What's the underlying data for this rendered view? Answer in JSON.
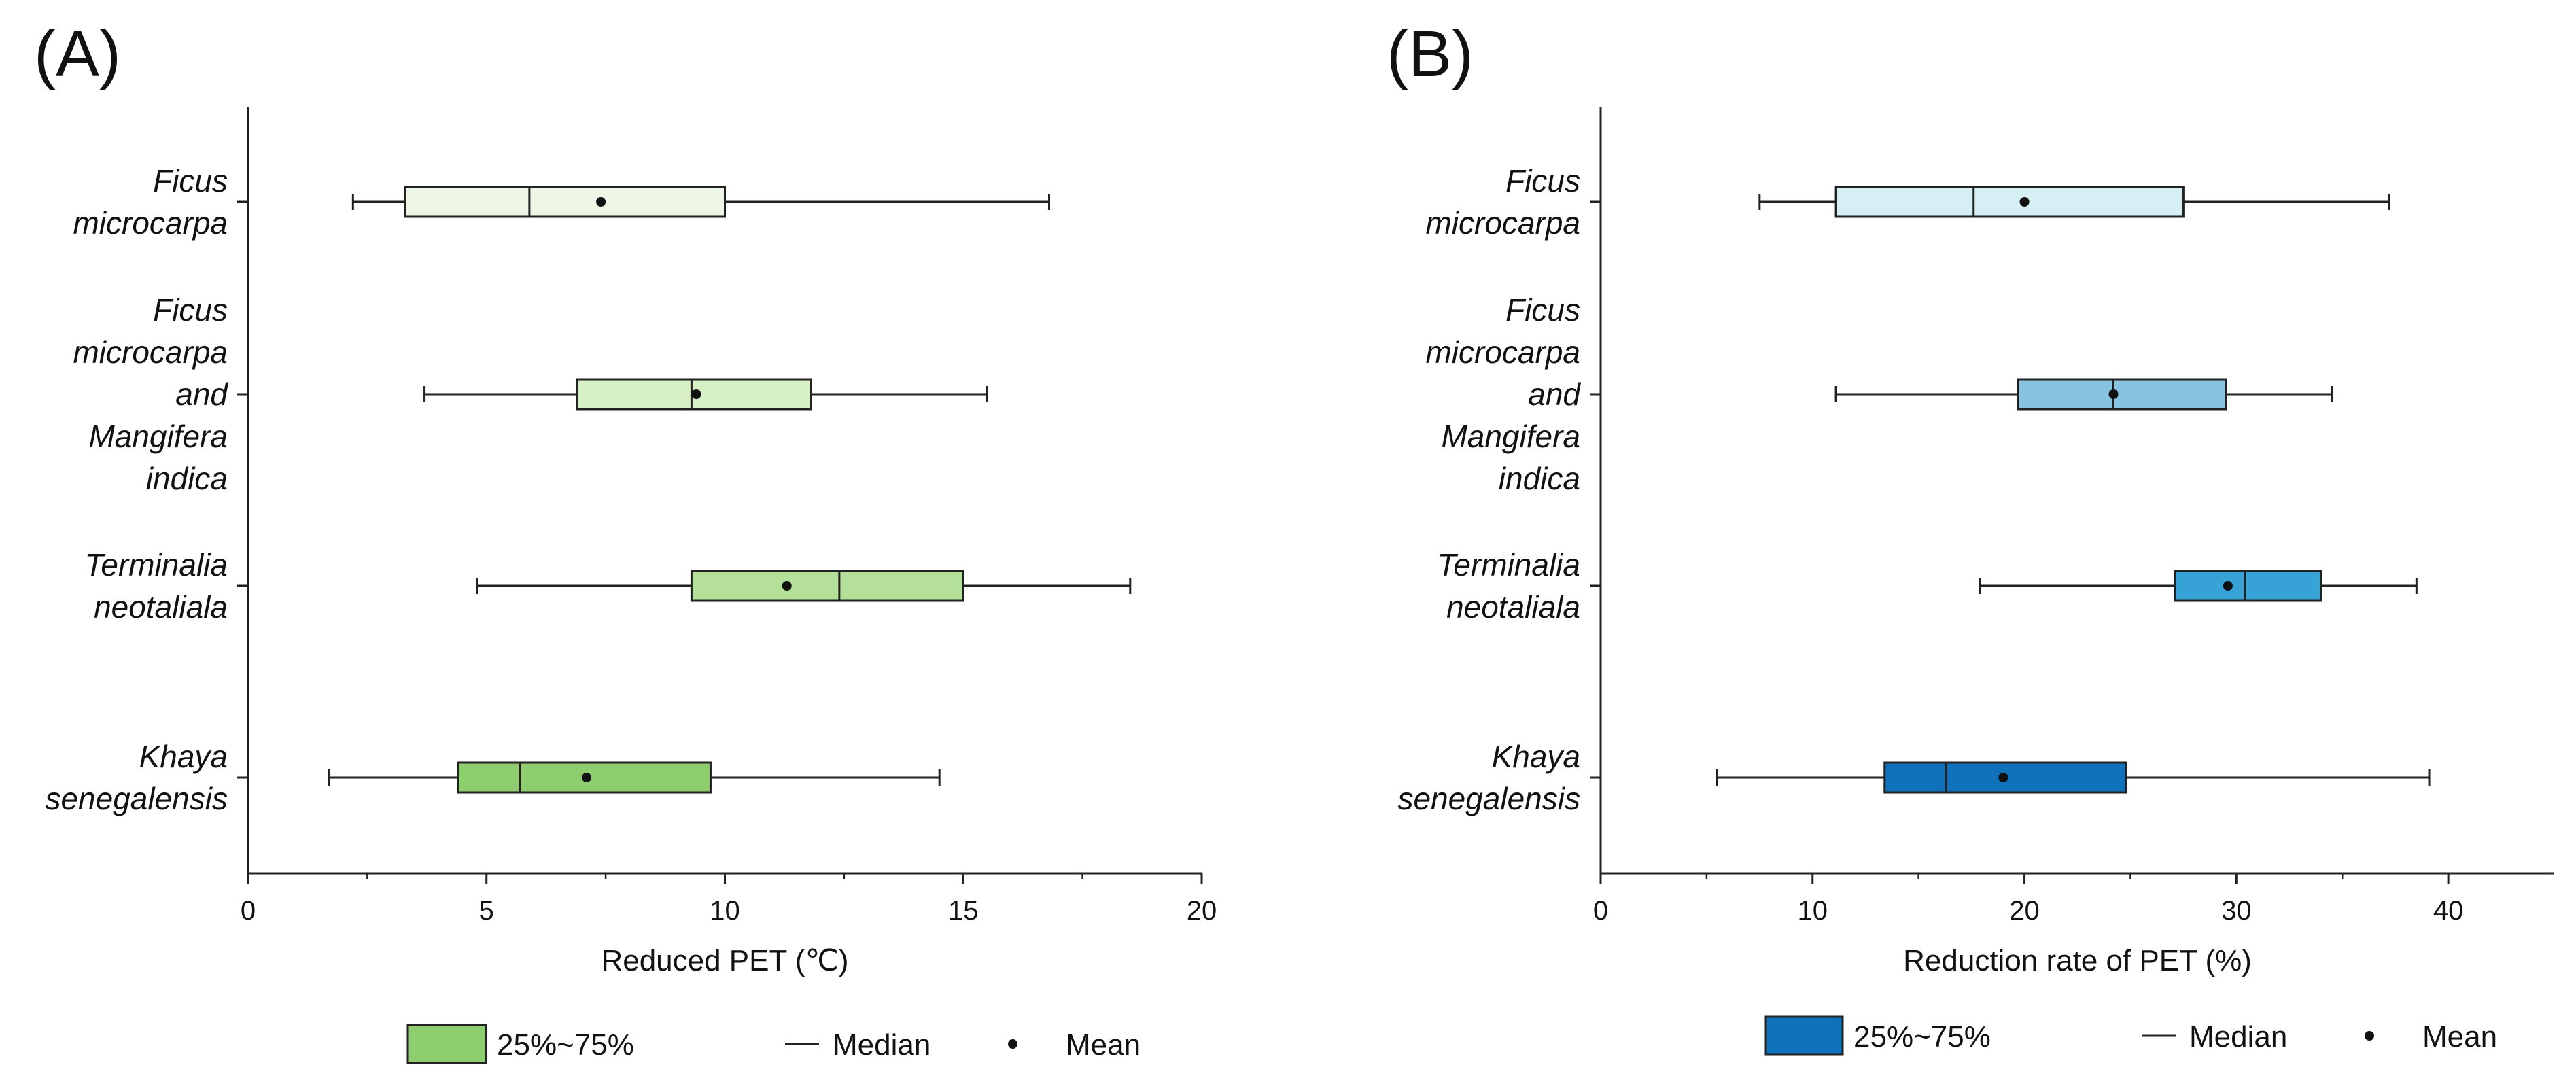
{
  "chart_data": [
    {
      "type": "boxplot",
      "panel_label": "(A)",
      "xlabel": "Reduced PET (℃)",
      "xlim": [
        0,
        20
      ],
      "xticks": [
        0,
        5,
        10,
        15,
        20
      ],
      "xtick_labels": [
        "0",
        "5",
        "10",
        "15",
        "20"
      ],
      "orientation": "horizontal",
      "categories": [
        {
          "label_lines": [
            "Ficus",
            "microcarpa"
          ],
          "whisker_low": 2.2,
          "q1": 3.3,
          "median": 5.9,
          "mean": 7.4,
          "q3": 10.0,
          "whisker_high": 16.8,
          "fill": "#eef7e6"
        },
        {
          "label_lines": [
            "Ficus",
            "microcarpa",
            "and",
            "Mangifera",
            "indica"
          ],
          "whisker_low": 3.7,
          "q1": 6.9,
          "median": 9.3,
          "mean": 9.4,
          "q3": 11.8,
          "whisker_high": 15.5,
          "fill": "#d8f0c6"
        },
        {
          "label_lines": [
            "Terminalia",
            "neotaliala"
          ],
          "whisker_low": 4.8,
          "q1": 9.3,
          "median": 12.4,
          "mean": 11.3,
          "q3": 15.0,
          "whisker_high": 18.5,
          "fill": "#b5e09a"
        },
        {
          "label_lines": [
            "Khaya",
            "senegalensis"
          ],
          "whisker_low": 1.7,
          "q1": 4.4,
          "median": 5.7,
          "mean": 7.1,
          "q3": 9.7,
          "whisker_high": 14.5,
          "fill": "#8fce6e"
        }
      ],
      "legend": {
        "box_label": "25%~75%",
        "median_label": "Median",
        "mean_label": "Mean",
        "box_color": "#8fce6e"
      }
    },
    {
      "type": "boxplot",
      "panel_label": "(B)",
      "xlabel": "Reduction rate of PET (%)",
      "xlim": [
        0,
        45
      ],
      "xticks": [
        0,
        10,
        20,
        30,
        40
      ],
      "xtick_labels": [
        "0",
        "10",
        "20",
        "30",
        "40"
      ],
      "orientation": "horizontal",
      "categories": [
        {
          "label_lines": [
            "Ficus",
            "microcarpa"
          ],
          "whisker_low": 7.5,
          "q1": 11.1,
          "median": 17.6,
          "mean": 20.0,
          "q3": 27.5,
          "whisker_high": 37.2,
          "fill": "#d6eff4"
        },
        {
          "label_lines": [
            "Ficus",
            "microcarpa",
            "and",
            "Mangifera",
            "indica"
          ],
          "whisker_low": 11.1,
          "q1": 19.7,
          "median": 24.2,
          "mean": 24.2,
          "q3": 29.5,
          "whisker_high": 34.5,
          "fill": "#86c4e2"
        },
        {
          "label_lines": [
            "Terminalia",
            "neotaliala"
          ],
          "whisker_low": 17.9,
          "q1": 27.1,
          "median": 30.4,
          "mean": 29.6,
          "q3": 34.0,
          "whisker_high": 38.5,
          "fill": "#36a2d6"
        },
        {
          "label_lines": [
            "Khaya",
            "senegalensis"
          ],
          "whisker_low": 5.5,
          "q1": 13.4,
          "median": 16.3,
          "mean": 19.0,
          "q3": 24.8,
          "whisker_high": 39.1,
          "fill": "#0f72bb"
        }
      ],
      "legend": {
        "box_label": "25%~75%",
        "median_label": "Median",
        "mean_label": "Mean",
        "box_color": "#0f72bb"
      }
    }
  ]
}
